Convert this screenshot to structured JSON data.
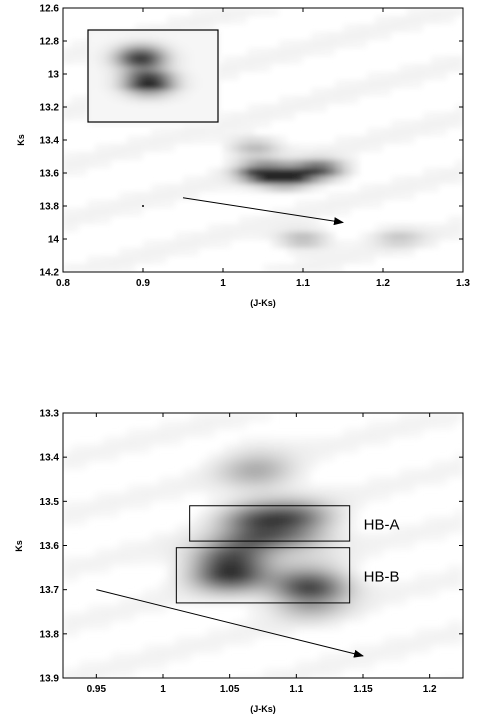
{
  "chart_data": [
    {
      "type": "heatmap",
      "xlabel": "(J-Ks)",
      "ylabel": "Ks",
      "xlim": [
        0.8,
        1.3
      ],
      "ylim": [
        14.2,
        12.6
      ],
      "y_inverted": true,
      "xticks": [
        "0.8",
        "0.9",
        "1",
        "1.1",
        "1.2",
        "1.3"
      ],
      "yticks": [
        "12.6",
        "12.8",
        "13",
        "13.2",
        "13.4",
        "13.6",
        "13.8",
        "14",
        "14.2"
      ],
      "colormap": "grayscale",
      "density_peaks": [
        {
          "x": 1.08,
          "y": 13.63,
          "intensity": 1.0
        },
        {
          "x": 1.05,
          "y": 13.6,
          "intensity": 0.85
        },
        {
          "x": 1.12,
          "y": 13.58,
          "intensity": 0.7
        },
        {
          "x": 1.04,
          "y": 13.45,
          "intensity": 0.35
        },
        {
          "x": 1.1,
          "y": 14.0,
          "intensity": 0.3
        },
        {
          "x": 1.22,
          "y": 13.99,
          "intensity": 0.2
        }
      ],
      "inset": {
        "xlim": [
          0.83,
          0.99
        ],
        "ylim": [
          12.73,
          13.29
        ],
        "density_peaks": [
          {
            "x": 0.905,
            "y": 13.05,
            "intensity": 1.0
          },
          {
            "x": 0.895,
            "y": 12.9,
            "intensity": 0.85
          }
        ]
      },
      "arrow": {
        "from": [
          0.95,
          13.75
        ],
        "to": [
          1.15,
          13.9
        ]
      },
      "marker": {
        "x": 0.9,
        "y": 13.8
      }
    },
    {
      "type": "heatmap",
      "xlabel": "(J-Ks)",
      "ylabel": "Ks",
      "xlim": [
        0.925,
        1.225
      ],
      "ylim": [
        13.9,
        13.3
      ],
      "y_inverted": true,
      "xticks": [
        "0.95",
        "1",
        "1.05",
        "1.1",
        "1.15",
        "1.2"
      ],
      "yticks": [
        "13.3",
        "13.4",
        "13.5",
        "13.6",
        "13.7",
        "13.8",
        "13.9"
      ],
      "colormap": "grayscale",
      "density_peaks": [
        {
          "x": 1.05,
          "y": 13.65,
          "intensity": 1.0
        },
        {
          "x": 1.11,
          "y": 13.7,
          "intensity": 0.8
        },
        {
          "x": 1.07,
          "y": 13.56,
          "intensity": 0.7
        },
        {
          "x": 1.1,
          "y": 13.55,
          "intensity": 0.6
        },
        {
          "x": 1.07,
          "y": 13.43,
          "intensity": 0.3
        }
      ],
      "boxes": [
        {
          "label": "HB-A",
          "x": [
            1.02,
            1.14
          ],
          "y": [
            13.51,
            13.59
          ]
        },
        {
          "label": "HB-B",
          "x": [
            1.01,
            1.14
          ],
          "y": [
            13.605,
            13.73
          ]
        }
      ],
      "arrow": {
        "from": [
          0.95,
          13.7
        ],
        "to": [
          1.15,
          13.85
        ]
      }
    }
  ]
}
